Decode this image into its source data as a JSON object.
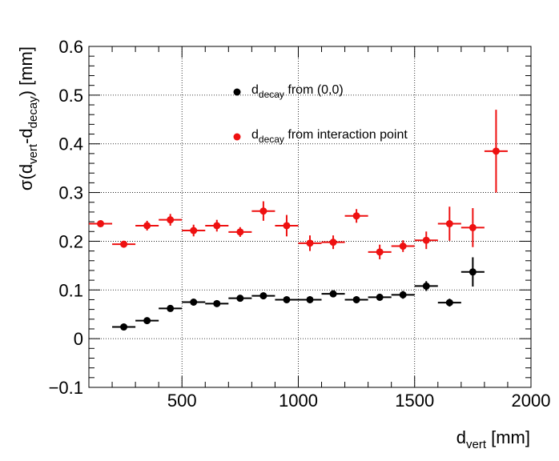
{
  "chart_data": {
    "type": "scatter",
    "title": "",
    "xlabel": {
      "main": "d",
      "sub": "vert",
      "unit": " [mm]"
    },
    "ylabel": {
      "p1": "σ(d",
      "sub1": "vert",
      "p2": "-d",
      "sub2": "decay",
      "p3": ") [mm]"
    },
    "xlim": [
      100,
      2000
    ],
    "ylim": [
      -0.1,
      0.6
    ],
    "x_ticks": [
      500,
      1000,
      1500,
      2000
    ],
    "x_tick_labels": [
      "500",
      "1000",
      "1500",
      "2000"
    ],
    "y_ticks": [
      -0.1,
      0,
      0.1,
      0.2,
      0.3,
      0.4,
      0.5,
      0.6
    ],
    "y_tick_labels": [
      "−0.1",
      "0",
      "0.1",
      "0.2",
      "0.3",
      "0.4",
      "0.5",
      "0.6"
    ],
    "grid": true,
    "legend_position": "top-center",
    "series": [
      {
        "name": "d_decay from (0,0)",
        "legend": {
          "main": "d",
          "sub": "decay",
          "rest": " from (0,0)"
        },
        "color": "#000000",
        "x": [
          250,
          350,
          450,
          550,
          650,
          750,
          850,
          950,
          1050,
          1150,
          1250,
          1350,
          1450,
          1550,
          1650,
          1750
        ],
        "y": [
          0.024,
          0.037,
          0.062,
          0.075,
          0.072,
          0.083,
          0.088,
          0.08,
          0.08,
          0.092,
          0.08,
          0.085,
          0.09,
          0.108,
          0.074,
          0.137
        ],
        "x_err": 50,
        "y_err": [
          0.004,
          0.004,
          0.005,
          0.006,
          0.006,
          0.006,
          0.007,
          0.006,
          0.007,
          0.007,
          0.007,
          0.007,
          0.008,
          0.01,
          0.008,
          0.03
        ]
      },
      {
        "name": "d_decay from interaction point",
        "legend": {
          "main": "d",
          "sub": "decay",
          "rest": " from interaction point"
        },
        "color": "#ee1111",
        "x": [
          150,
          250,
          350,
          450,
          550,
          650,
          750,
          850,
          950,
          1050,
          1150,
          1250,
          1350,
          1450,
          1550,
          1650,
          1750,
          1850
        ],
        "y": [
          0.236,
          0.194,
          0.232,
          0.244,
          0.222,
          0.232,
          0.219,
          0.262,
          0.232,
          0.196,
          0.198,
          0.252,
          0.178,
          0.19,
          0.202,
          0.236,
          0.228,
          0.385
        ],
        "x_err": 50,
        "y_err": [
          0.005,
          0.006,
          0.01,
          0.012,
          0.012,
          0.012,
          0.01,
          0.02,
          0.022,
          0.016,
          0.014,
          0.014,
          0.015,
          0.012,
          0.018,
          0.035,
          0.04,
          0.085
        ]
      }
    ]
  }
}
